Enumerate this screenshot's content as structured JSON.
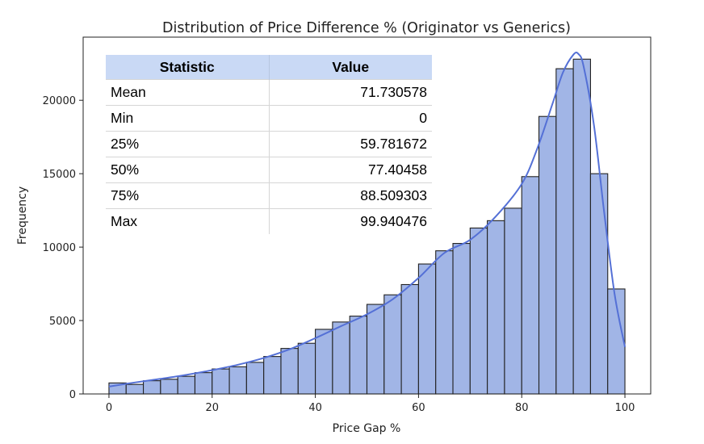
{
  "chart_data": {
    "type": "bar",
    "title": "Distribution of Price Difference % (Originator vs Generics)",
    "xlabel": "Price Gap %",
    "ylabel": "Frequency",
    "xlim": [
      -5,
      105
    ],
    "ylim": [
      0,
      24300
    ],
    "xticks": [
      0,
      20,
      40,
      60,
      80,
      100
    ],
    "yticks": [
      0,
      5000,
      10000,
      15000,
      20000
    ],
    "bar_color": "#a1b5e6",
    "bar_edge_color": "#222222",
    "kde_color": "#5470d6",
    "bin_width": 3.3333,
    "bin_starts": [
      0,
      3.333,
      6.667,
      10,
      13.333,
      16.667,
      20,
      23.333,
      26.667,
      30,
      33.333,
      36.667,
      40,
      43.333,
      46.667,
      50,
      53.333,
      56.667,
      60,
      63.333,
      66.667,
      70,
      73.333,
      76.667,
      80,
      83.333,
      86.667,
      90,
      93.333,
      96.667
    ],
    "values": [
      750,
      650,
      900,
      1000,
      1200,
      1450,
      1700,
      1850,
      2150,
      2550,
      3100,
      3450,
      4400,
      4900,
      5300,
      6100,
      6750,
      7450,
      8850,
      9750,
      10250,
      11300,
      11800,
      12650,
      14800,
      18900,
      22150,
      22800,
      15000,
      7150
    ],
    "kde": {
      "x": [
        0,
        5,
        10,
        15,
        20,
        25,
        30,
        35,
        40,
        45,
        50,
        55,
        60,
        65,
        70,
        75,
        80,
        83,
        86,
        88,
        90,
        91,
        92,
        94,
        96,
        98,
        100
      ],
      "y": [
        500,
        780,
        1030,
        1300,
        1620,
        1990,
        2450,
        3040,
        3800,
        4620,
        5420,
        6450,
        7900,
        9600,
        10500,
        12100,
        14300,
        16700,
        19800,
        21900,
        23100,
        23150,
        22300,
        18300,
        12300,
        6800,
        3200
      ]
    },
    "legend": "none",
    "grid": false
  },
  "stats_table": {
    "headers": [
      "Statistic",
      "Value"
    ],
    "rows": [
      [
        "Mean",
        "71.730578"
      ],
      [
        "Min",
        "0"
      ],
      [
        "25%",
        "59.781672"
      ],
      [
        "50%",
        "77.40458"
      ],
      [
        "75%",
        "88.509303"
      ],
      [
        "Max",
        "99.940476"
      ]
    ]
  }
}
